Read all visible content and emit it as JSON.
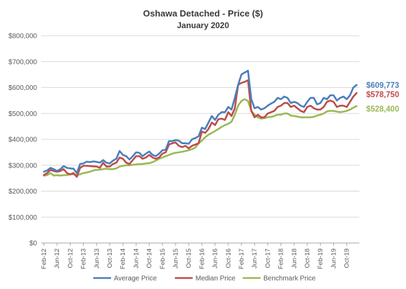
{
  "chart_data": {
    "type": "line",
    "title": "Oshawa Detached - Price ($)",
    "subtitle": "January 2020",
    "ylim": [
      0,
      800000
    ],
    "y_ticks": [
      0,
      100000,
      200000,
      300000,
      400000,
      500000,
      600000,
      700000,
      800000
    ],
    "y_tick_labels": [
      "$0",
      "$100,000",
      "$200,000",
      "$300,000",
      "$400,000",
      "$500,000",
      "$600,000",
      "$700,000",
      "$800,000"
    ],
    "x_start": "Feb-12",
    "x_tick_labels": [
      "Feb-12",
      "Jun-12",
      "Oct-12",
      "Feb-13",
      "Jun-13",
      "Oct-13",
      "Feb-14",
      "Jun-14",
      "Oct-14",
      "Feb-15",
      "Jun-15",
      "Oct-15",
      "Feb-16",
      "Jun-16",
      "Oct-16",
      "Feb-17",
      "Jun-17",
      "Oct-17",
      "Feb-18",
      "Jun-18",
      "Oct-18",
      "Feb-19",
      "Jun-19",
      "Oct-19"
    ],
    "grid": true,
    "legend_position": "bottom",
    "series": [
      {
        "name": "Average Price",
        "color": "#4a7ebb",
        "end_label": "$609,773",
        "values": [
          275000,
          280000,
          290000,
          285000,
          278000,
          285000,
          297000,
          290000,
          288000,
          287000,
          270000,
          305000,
          307000,
          314000,
          312000,
          315000,
          313000,
          310000,
          320000,
          310000,
          307000,
          318000,
          325000,
          355000,
          340000,
          335000,
          322000,
          335000,
          350000,
          348000,
          335000,
          345000,
          353000,
          340000,
          335000,
          345000,
          358000,
          360000,
          393000,
          393000,
          397000,
          395000,
          385000,
          385000,
          383000,
          400000,
          405000,
          412000,
          445000,
          440000,
          465000,
          490000,
          475000,
          495000,
          505000,
          505000,
          525000,
          515000,
          560000,
          610000,
          650000,
          658000,
          665000,
          555000,
          520000,
          525000,
          515000,
          520000,
          530000,
          538000,
          545000,
          560000,
          555000,
          565000,
          560000,
          540000,
          545000,
          540000,
          530000,
          525000,
          545000,
          560000,
          560000,
          535000,
          540000,
          560000,
          555000,
          570000,
          570000,
          550000,
          560000,
          565000,
          555000,
          570000,
          600000,
          609773
        ]
      },
      {
        "name": "Median Price",
        "color": "#be4b48",
        "end_label": "$578,750",
        "values": [
          262000,
          270000,
          282000,
          278000,
          275000,
          278000,
          285000,
          270000,
          265000,
          270000,
          255000,
          290000,
          298000,
          298000,
          297000,
          296000,
          295000,
          290000,
          310000,
          295000,
          295000,
          305000,
          310000,
          330000,
          325000,
          310000,
          305000,
          320000,
          335000,
          335000,
          325000,
          330000,
          340000,
          330000,
          325000,
          330000,
          345000,
          350000,
          380000,
          385000,
          388000,
          375000,
          370000,
          375000,
          365000,
          375000,
          380000,
          385000,
          430000,
          425000,
          440000,
          465000,
          455000,
          478000,
          480000,
          475000,
          505000,
          490000,
          520000,
          610000,
          618000,
          622000,
          628000,
          510000,
          485000,
          495000,
          485000,
          485000,
          500000,
          505000,
          510000,
          525000,
          530000,
          540000,
          540000,
          525000,
          530000,
          520000,
          510000,
          505000,
          525000,
          530000,
          520000,
          515000,
          515000,
          525000,
          545000,
          550000,
          545000,
          525000,
          530000,
          530000,
          525000,
          545000,
          565000,
          578750
        ]
      },
      {
        "name": "Benchmark Price",
        "color": "#98b954",
        "end_label": "$528,400",
        "values": [
          260000,
          262000,
          270000,
          260000,
          262000,
          260000,
          262000,
          262000,
          265000,
          265000,
          262000,
          265000,
          270000,
          272000,
          275000,
          280000,
          282000,
          283000,
          285000,
          287000,
          285000,
          285000,
          288000,
          295000,
          298000,
          300000,
          300000,
          302000,
          303000,
          305000,
          305000,
          307000,
          308000,
          312000,
          318000,
          325000,
          330000,
          335000,
          340000,
          345000,
          348000,
          350000,
          352000,
          355000,
          358000,
          362000,
          368000,
          385000,
          395000,
          408000,
          418000,
          425000,
          432000,
          440000,
          448000,
          455000,
          460000,
          468000,
          495000,
          530000,
          548000,
          555000,
          548000,
          510000,
          495000,
          485000,
          480000,
          482000,
          485000,
          487000,
          490000,
          495000,
          495000,
          500000,
          500000,
          492000,
          490000,
          488000,
          485000,
          485000,
          485000,
          485000,
          487000,
          492000,
          495000,
          500000,
          508000,
          510000,
          510000,
          507000,
          505000,
          507000,
          510000,
          515000,
          522000,
          528400
        ]
      }
    ]
  }
}
